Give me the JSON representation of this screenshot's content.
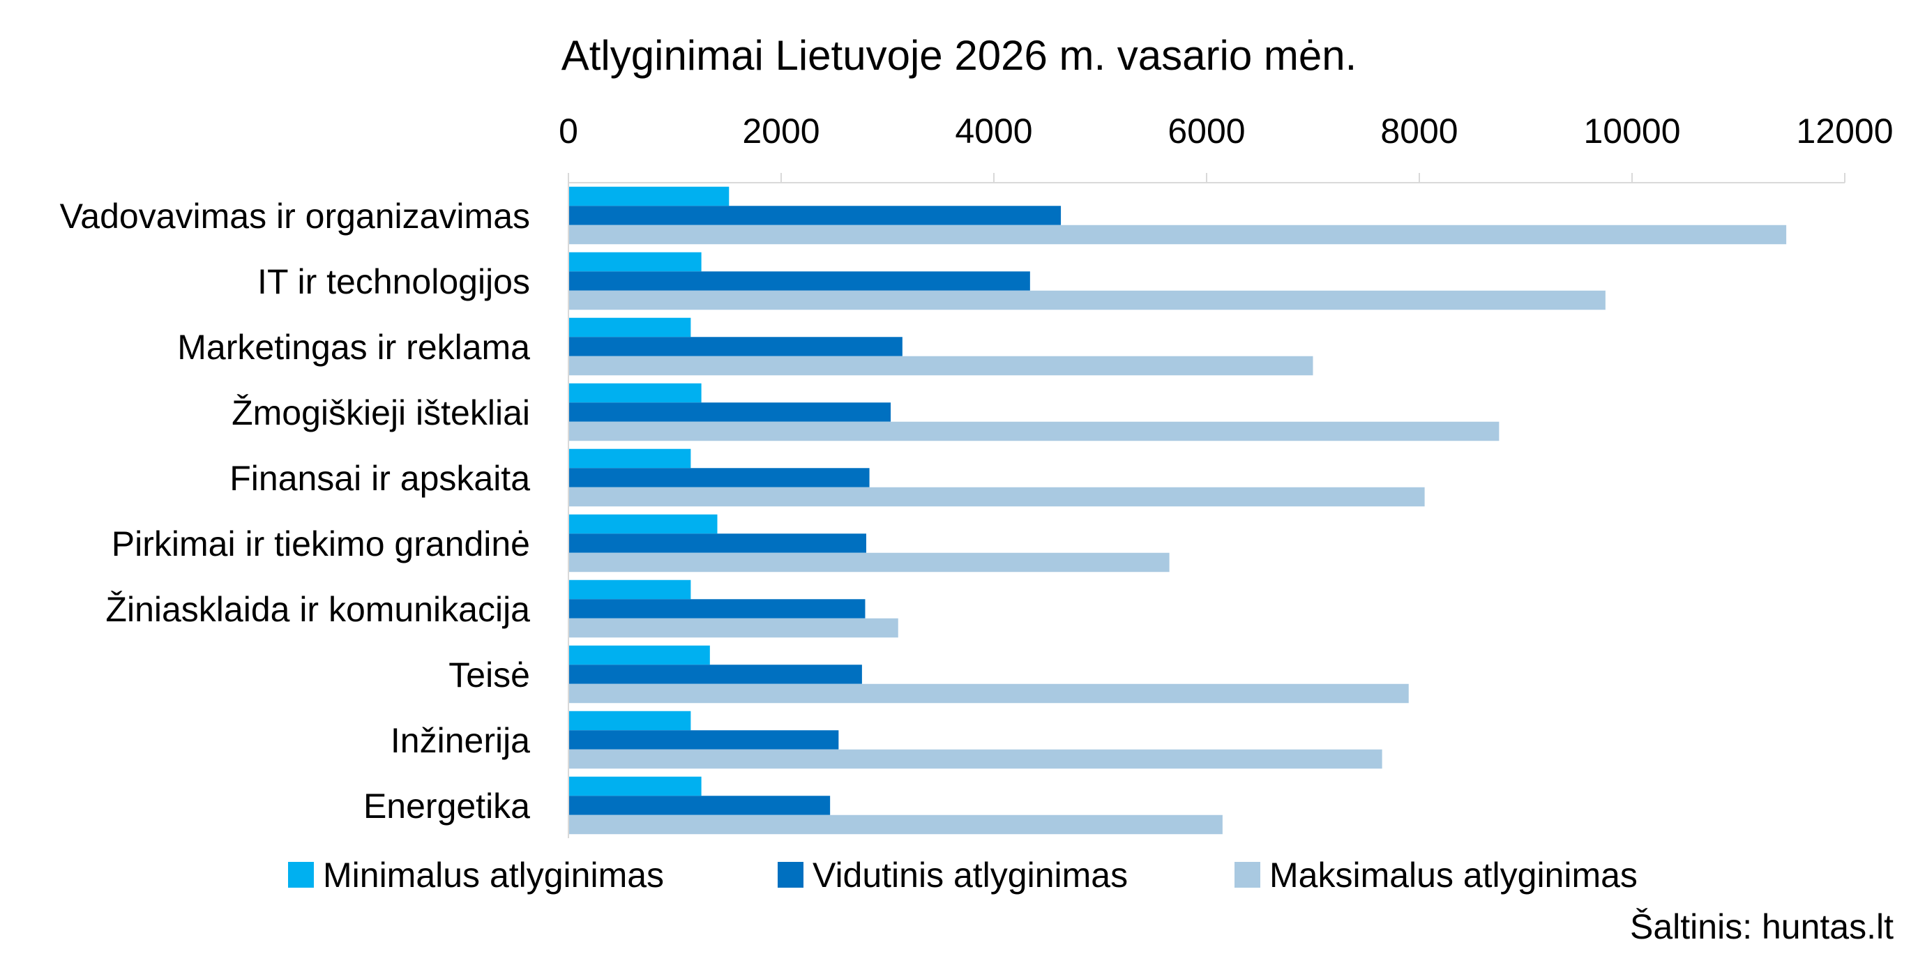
{
  "chart_data": {
    "type": "bar",
    "orientation": "horizontal",
    "title": "Atlyginimai Lietuvoje 2026 m. vasario mėn.",
    "source": "Šaltinis: huntas.lt",
    "categories": [
      "Vadovavimas ir organizavimas",
      "IT ir technologijos",
      "Marketingas ir reklama",
      "Žmogiškieji ištekliai",
      "Finansai ir apskaita",
      "Pirkimai ir tiekimo grandinė",
      "Žiniasklaida ir komunikacija",
      "Teisė",
      "Inžinerija",
      "Energetika"
    ],
    "series": [
      {
        "name": "Minimalus atlyginimas",
        "color": "#00B0F0",
        "values": [
          1510,
          1250,
          1150,
          1250,
          1150,
          1400,
          1150,
          1330,
          1150,
          1250
        ]
      },
      {
        "name": "Vidutinis atlyginimas",
        "color": "#0070C0",
        "values": [
          4630,
          4340,
          3140,
          3030,
          2830,
          2800,
          2790,
          2760,
          2540,
          2460
        ]
      },
      {
        "name": "Maksimalus atlyginimas",
        "color": "#A9C9E1",
        "values": [
          11450,
          9750,
          7000,
          8750,
          8050,
          5650,
          3100,
          7900,
          7650,
          6150
        ]
      }
    ],
    "xlim": [
      0,
      12000
    ],
    "xticks": [
      "0",
      "2000",
      "4000",
      "6000",
      "8000",
      "10000",
      "12000"
    ],
    "axis_position": "top",
    "grid": false,
    "legend_position": "bottom"
  }
}
